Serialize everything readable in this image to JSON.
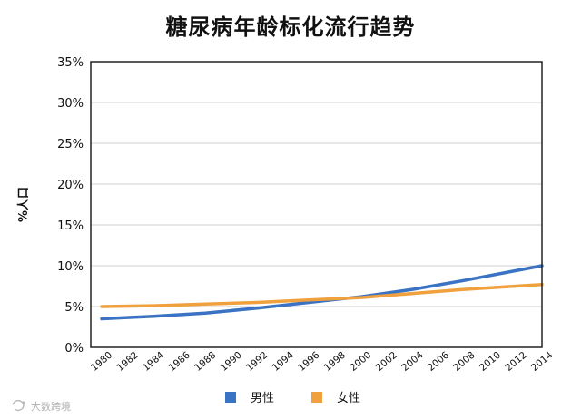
{
  "chart_data": {
    "type": "line",
    "title": "糖尿病年龄标化流行趋势",
    "ylabel": "%人口",
    "xlabel": "",
    "ylim": [
      0,
      35
    ],
    "yticks": [
      0,
      5,
      10,
      15,
      20,
      25,
      30,
      35
    ],
    "ytick_labels": [
      "0%",
      "5%",
      "10%",
      "15%",
      "20%",
      "25%",
      "30%",
      "35%"
    ],
    "xlim": [
      1980,
      2014
    ],
    "x_ticks": [
      "1980",
      "1982",
      "1984",
      "1986",
      "1988",
      "1990",
      "1992",
      "1994",
      "1996",
      "1998",
      "2000",
      "2002",
      "2004",
      "2006",
      "2008",
      "2010",
      "2012",
      "2014"
    ],
    "grid": true,
    "legend_position": "bottom",
    "series": [
      {
        "name": "男性",
        "color": "#3a72c4",
        "x": [
          1980,
          1984,
          1988,
          1992,
          1996,
          2000,
          2004,
          2008,
          2012,
          2014
        ],
        "values": [
          3.5,
          3.8,
          4.2,
          4.8,
          5.5,
          6.2,
          7.1,
          8.2,
          9.4,
          10.0
        ]
      },
      {
        "name": "女性",
        "color": "#f0a03c",
        "x": [
          1980,
          1984,
          1988,
          1992,
          1996,
          2000,
          2004,
          2008,
          2012,
          2014
        ],
        "values": [
          5.0,
          5.1,
          5.3,
          5.5,
          5.8,
          6.1,
          6.6,
          7.1,
          7.5,
          7.7
        ]
      }
    ]
  },
  "watermark": {
    "text": "大数跨境",
    "icon": "logo-icon"
  }
}
